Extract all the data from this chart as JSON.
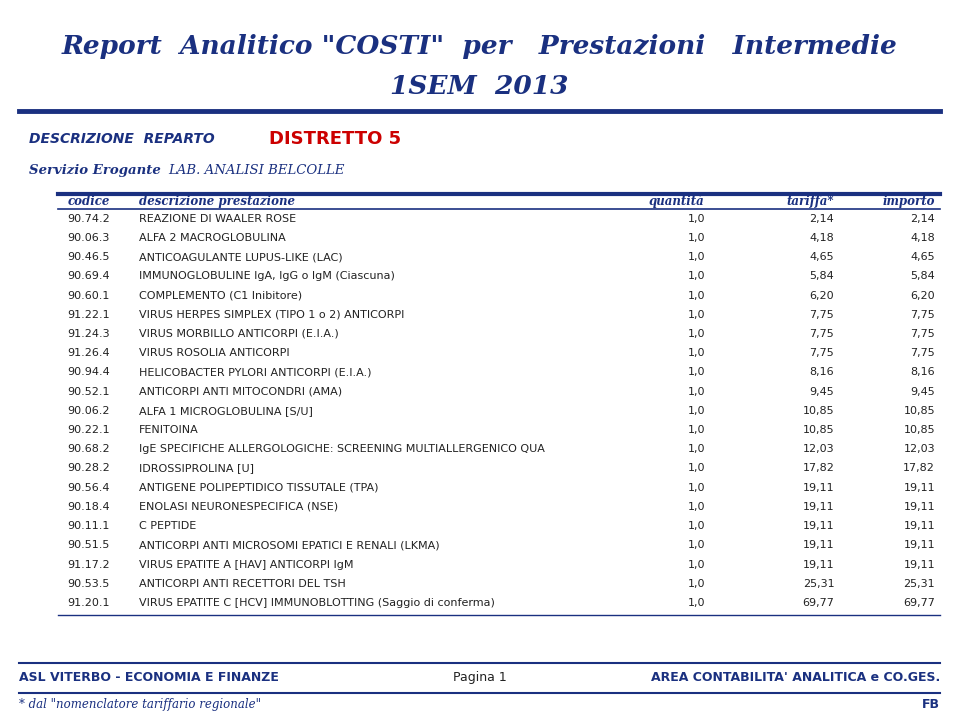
{
  "title_line1": "Report  Analitico \"COSTI\"  per   Prestazioni   Intermedie",
  "title_line2": "1SEM  2013",
  "title_color": "#1a3080",
  "desc_reparto_label": "DESCRIZIONE  REPARTO",
  "desc_reparto_value": "DISTRETTO 5",
  "desc_reparto_value_color": "#cc0000",
  "servizio_label": "Servizio Erogante",
  "servizio_value": "LAB. ANALISI BELCOLLE",
  "col_headers": [
    "codice",
    "descrizione prestazione",
    "quantità",
    "tariffa*",
    "importo"
  ],
  "rows": [
    [
      "90.74.2",
      "REAZIONE DI WAALER ROSE",
      "1,0",
      "2,14",
      "2,14"
    ],
    [
      "90.06.3",
      "ALFA 2 MACROGLOBULINA",
      "1,0",
      "4,18",
      "4,18"
    ],
    [
      "90.46.5",
      "ANTICOAGULANTE LUPUS-LIKE (LAC)",
      "1,0",
      "4,65",
      "4,65"
    ],
    [
      "90.69.4",
      "IMMUNOGLOBULINE IgA, IgG o IgM (Ciascuna)",
      "1,0",
      "5,84",
      "5,84"
    ],
    [
      "90.60.1",
      "COMPLEMENTO (C1 Inibitore)",
      "1,0",
      "6,20",
      "6,20"
    ],
    [
      "91.22.1",
      "VIRUS HERPES SIMPLEX (TIPO 1 o 2) ANTICORPI",
      "1,0",
      "7,75",
      "7,75"
    ],
    [
      "91.24.3",
      "VIRUS MORBILLO ANTICORPI (E.I.A.)",
      "1,0",
      "7,75",
      "7,75"
    ],
    [
      "91.26.4",
      "VIRUS ROSOLIA ANTICORPI",
      "1,0",
      "7,75",
      "7,75"
    ],
    [
      "90.94.4",
      "HELICOBACTER PYLORI ANTICORPI (E.I.A.)",
      "1,0",
      "8,16",
      "8,16"
    ],
    [
      "90.52.1",
      "ANTICORPI ANTI MITOCONDRI (AMA)",
      "1,0",
      "9,45",
      "9,45"
    ],
    [
      "90.06.2",
      "ALFA 1 MICROGLOBULINA [S/U]",
      "1,0",
      "10,85",
      "10,85"
    ],
    [
      "90.22.1",
      "FENITOINA",
      "1,0",
      "10,85",
      "10,85"
    ],
    [
      "90.68.2",
      "IgE SPECIFICHE ALLERGOLOGICHE: SCREENING MULTIALLERGENICO QUA",
      "1,0",
      "12,03",
      "12,03"
    ],
    [
      "90.28.2",
      "IDROSSIPROLINA [U]",
      "1,0",
      "17,82",
      "17,82"
    ],
    [
      "90.56.4",
      "ANTIGENE POLIPEPTIDICO TISSUTALE (TPA)",
      "1,0",
      "19,11",
      "19,11"
    ],
    [
      "90.18.4",
      "ENOLASI NEURONESPECIFICA (NSE)",
      "1,0",
      "19,11",
      "19,11"
    ],
    [
      "90.11.1",
      "C PEPTIDE",
      "1,0",
      "19,11",
      "19,11"
    ],
    [
      "90.51.5",
      "ANTICORPI ANTI MICROSOMI EPATICI E RENALI (LKMA)",
      "1,0",
      "19,11",
      "19,11"
    ],
    [
      "91.17.2",
      "VIRUS EPATITE A [HAV] ANTICORPI IgM",
      "1,0",
      "19,11",
      "19,11"
    ],
    [
      "90.53.5",
      "ANTICORPI ANTI RECETTORI DEL TSH",
      "1,0",
      "25,31",
      "25,31"
    ],
    [
      "91.20.1",
      "VIRUS EPATITE C [HCV] IMMUNOBLOTTING (Saggio di conferma)",
      "1,0",
      "69,77",
      "69,77"
    ]
  ],
  "footer_left": "ASL VITERBO - ECONOMIA E FINANZE",
  "footer_center": "Pagina 1",
  "footer_right": "AREA CONTABILITA' ANALITICA e CO.GES.",
  "footer_bottom_left": "* dal \"nomenclatore tariffario regionale\"",
  "footer_bottom_right": "FB",
  "bg_color": "#ffffff",
  "header_color": "#1a3080",
  "table_text_color": "#222222",
  "line_color": "#1a3080",
  "title_fontsize": 19,
  "desc_reparto_fontsize": 10,
  "distretto_fontsize": 13,
  "servizio_fontsize": 9.5,
  "col_header_fontsize": 8.5,
  "row_fontsize": 8.0,
  "footer_fontsize": 9.0
}
